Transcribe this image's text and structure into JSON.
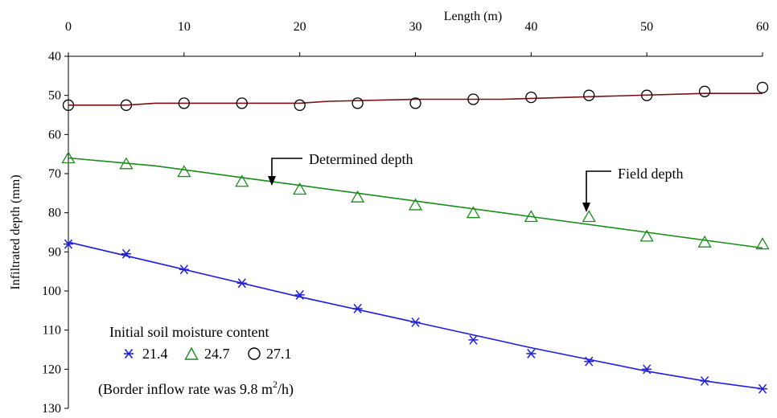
{
  "chart_data": {
    "type": "line",
    "xlabel": "Length (m)",
    "ylabel": "Infiltrated depth (mm)",
    "xlim": [
      0,
      60
    ],
    "ylim": [
      40,
      130
    ],
    "y_inverted": true,
    "x_axis_position": "top",
    "x_ticks": [
      0,
      10,
      20,
      30,
      40,
      50,
      60
    ],
    "y_ticks": [
      40,
      50,
      60,
      70,
      80,
      90,
      100,
      110,
      120,
      130
    ],
    "grid": false,
    "series": [
      {
        "name": "21.4",
        "marker": "asterisk",
        "color": "#1f1fdc",
        "field_x": [
          0,
          5,
          10,
          15,
          20,
          25,
          30,
          35,
          40,
          45,
          50,
          55,
          60
        ],
        "field_y": [
          88,
          90.5,
          94.5,
          98,
          101,
          104.5,
          108,
          112.5,
          116,
          118,
          120,
          123,
          125
        ],
        "determined_x": [
          0,
          10,
          20,
          30,
          40,
          50,
          55,
          60
        ],
        "determined_y": [
          87.5,
          94.5,
          101.5,
          108,
          114.5,
          120.5,
          123,
          125
        ]
      },
      {
        "name": "24.7",
        "marker": "triangle",
        "color": "#1a8c1a",
        "field_x": [
          0,
          5,
          10,
          15,
          20,
          25,
          30,
          35,
          40,
          45,
          50,
          55,
          60
        ],
        "field_y": [
          66,
          67.5,
          69.5,
          72,
          74,
          76,
          78,
          80,
          81,
          81,
          86,
          87.5,
          88
        ],
        "determined_x": [
          0,
          7.5,
          15,
          20,
          30,
          40,
          50,
          60
        ],
        "determined_y": [
          66,
          68,
          71,
          73,
          77,
          81,
          85,
          89
        ]
      },
      {
        "name": "27.1",
        "marker": "circle",
        "color": "#000000",
        "line_color": "#7a0f14",
        "field_x": [
          0,
          5,
          10,
          15,
          20,
          25,
          30,
          35,
          40,
          45,
          50,
          55,
          60
        ],
        "field_y": [
          52.5,
          52.5,
          52,
          52,
          52.5,
          52,
          52,
          51,
          50.5,
          50,
          50,
          49,
          48
        ],
        "determined_x": [
          0,
          5,
          7.5,
          20,
          22.5,
          30,
          35,
          37.5,
          55,
          60
        ],
        "determined_y": [
          52.5,
          52.5,
          52,
          52,
          51.5,
          51,
          51,
          51,
          49.5,
          49.5
        ]
      }
    ],
    "annotations": {
      "determined": "Determined depth",
      "field": "Field depth"
    },
    "legend": {
      "title": "Initial soil moisture content",
      "note_prefix": "(Border inflow rate was 9.8 m",
      "note_superscript": "2",
      "note_suffix": "/h)"
    }
  }
}
